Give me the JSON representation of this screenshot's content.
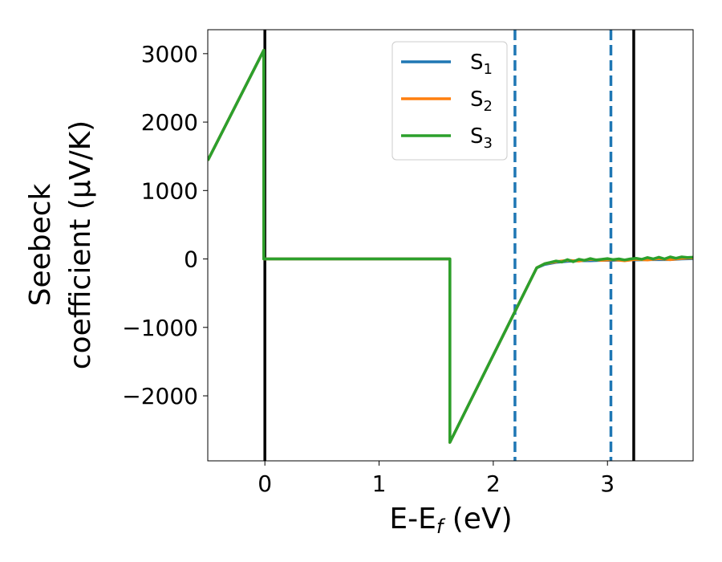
{
  "chart_data": {
    "type": "line",
    "xlabel_main": "E-E",
    "xlabel_sub": "f",
    "xlabel_unit": " (eV)",
    "ylabel_line1": "Seebeck",
    "ylabel_line2": "coefficient  (μV/K)",
    "xlim": [
      -0.5,
      3.75
    ],
    "ylim": [
      -2950,
      3350
    ],
    "xticks": [
      0,
      1,
      2,
      3
    ],
    "xtick_labels": [
      "0",
      "1",
      "2",
      "3"
    ],
    "yticks": [
      -2000,
      -1000,
      0,
      1000,
      2000,
      3000
    ],
    "ytick_labels": [
      "−2000",
      "−1000",
      "0",
      "1000",
      "2000",
      "3000"
    ],
    "grid": false,
    "legend_position": "top-center",
    "vertical_lines": [
      {
        "x": 0,
        "style": "solid",
        "color": "#000000"
      },
      {
        "x": 3.23,
        "style": "solid",
        "color": "#000000"
      },
      {
        "x": 2.19,
        "style": "dashed",
        "color": "#1f77b4"
      },
      {
        "x": 3.03,
        "style": "dashed",
        "color": "#1f77b4"
      }
    ],
    "series": [
      {
        "name_main": "S",
        "name_sub": "1",
        "color": "#1f77b4",
        "x": [
          -0.5,
          -0.01,
          -0.01,
          1.62,
          1.62,
          2.38,
          2.45,
          2.55,
          2.65,
          2.75,
          2.85,
          2.95,
          3.05,
          3.15,
          3.25,
          3.35,
          3.45,
          3.55,
          3.65,
          3.75
        ],
        "y": [
          1440,
          3050,
          0,
          0,
          -2680,
          -130,
          -80,
          -50,
          -35,
          -25,
          -25,
          -20,
          -20,
          -15,
          -15,
          -10,
          -10,
          -10,
          0,
          5
        ]
      },
      {
        "name_main": "S",
        "name_sub": "2",
        "color": "#ff7f0e",
        "x": [
          -0.5,
          -0.01,
          -0.01,
          1.62,
          1.62,
          2.38,
          2.45,
          2.55,
          2.65,
          2.75,
          2.85,
          2.95,
          3.05,
          3.15,
          3.25,
          3.35,
          3.45,
          3.55,
          3.65,
          3.75
        ],
        "y": [
          1440,
          3050,
          0,
          0,
          -2680,
          -130,
          -70,
          -40,
          -20,
          -30,
          -5,
          -20,
          -10,
          -25,
          -5,
          -15,
          5,
          -10,
          10,
          15
        ]
      },
      {
        "name_main": "S",
        "name_sub": "3",
        "color": "#2ca02c",
        "x": [
          -0.5,
          -0.01,
          -0.01,
          1.62,
          1.62,
          2.38,
          2.45,
          2.5,
          2.55,
          2.6,
          2.65,
          2.7,
          2.75,
          2.8,
          2.85,
          2.9,
          2.95,
          3.0,
          3.05,
          3.1,
          3.15,
          3.2,
          3.25,
          3.3,
          3.35,
          3.4,
          3.45,
          3.5,
          3.55,
          3.6,
          3.65,
          3.7,
          3.75
        ],
        "y": [
          1440,
          3050,
          0,
          0,
          -2680,
          -130,
          -70,
          -50,
          -30,
          -45,
          -10,
          -40,
          -5,
          -20,
          5,
          -15,
          -5,
          5,
          -10,
          0,
          -15,
          0,
          10,
          -5,
          20,
          0,
          25,
          0,
          30,
          10,
          30,
          20,
          25
        ]
      }
    ]
  }
}
